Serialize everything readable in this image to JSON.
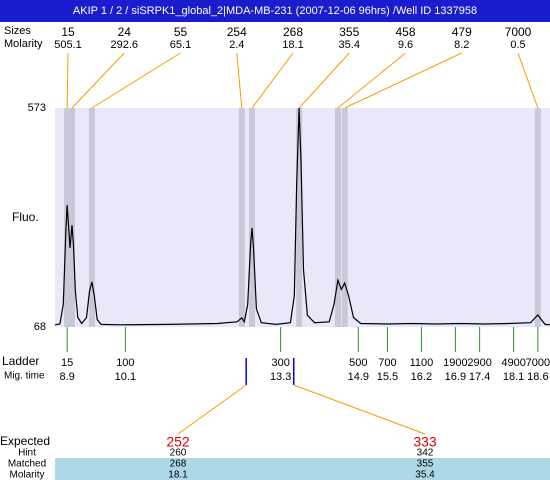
{
  "header": {
    "title": "AKIP 1 / 2 / siSRPK1_global_2|MDA-MB-231 (2007-12-06 96hrs) /Well ID 1337958"
  },
  "chart_data": {
    "type": "line",
    "ylabel": "Fluo.",
    "color": "#000000",
    "ylim": [
      68,
      573
    ],
    "yticks": [
      573,
      68
    ],
    "xlim": [
      8.65,
      18.85
    ],
    "x": [
      8.65,
      8.75,
      8.82,
      8.87,
      8.9,
      8.93,
      8.96,
      9.0,
      9.03,
      9.07,
      9.12,
      9.2,
      9.3,
      9.36,
      9.41,
      9.46,
      9.52,
      9.6,
      10.0,
      11.0,
      12.0,
      12.4,
      12.5,
      12.55,
      12.62,
      12.68,
      12.71,
      12.74,
      12.8,
      12.9,
      13.2,
      13.5,
      13.58,
      13.63,
      13.68,
      13.72,
      13.77,
      13.85,
      14.0,
      14.3,
      14.4,
      14.48,
      14.55,
      14.62,
      14.7,
      14.8,
      14.95,
      15.5,
      16.0,
      16.5,
      17.0,
      17.5,
      18.0,
      18.45,
      18.55,
      18.6,
      18.67,
      18.75,
      18.85
    ],
    "values": [
      73,
      75,
      120,
      280,
      349,
      300,
      250,
      303,
      260,
      150,
      90,
      76,
      90,
      150,
      172,
      140,
      85,
      74,
      73,
      74,
      76,
      80,
      89,
      80,
      120,
      260,
      296,
      250,
      110,
      78,
      74,
      78,
      140,
      400,
      573,
      450,
      200,
      95,
      78,
      80,
      120,
      176,
      155,
      169,
      140,
      90,
      76,
      75,
      76,
      75,
      76,
      75,
      76,
      78,
      90,
      96,
      85,
      74,
      73
    ],
    "peaks": {
      "size_label": "Sizes",
      "molarity_label": "Molarity",
      "size": [
        15,
        24,
        55,
        254,
        268,
        355,
        458,
        479,
        7000
      ],
      "molarity": [
        505.1,
        292.6,
        65.1,
        2.4,
        18.1,
        35.4,
        9.6,
        8.2,
        0.5
      ],
      "time": [
        8.9,
        9.0,
        9.41,
        12.5,
        12.71,
        13.68,
        14.48,
        14.62,
        18.6
      ]
    },
    "ladder": {
      "label": "Ladder",
      "time_label": "Mig. time",
      "size": [
        15,
        100,
        300,
        500,
        700,
        1100,
        1900,
        2900,
        4900,
        7000
      ],
      "time": [
        8.9,
        10.1,
        13.3,
        14.9,
        15.5,
        16.2,
        16.9,
        17.4,
        18.1,
        18.6
      ]
    },
    "expected": {
      "label": "Expected",
      "hint_label": "Hint",
      "matched_label": "Matched",
      "molarity_label": "Molarity",
      "items": [
        {
          "expected": 252,
          "hint": 260,
          "matched": 268,
          "molarity": 18.1,
          "time": 12.59
        },
        {
          "expected": 333,
          "hint": 342,
          "matched": 355,
          "molarity": 35.4,
          "time": 13.57
        }
      ]
    }
  }
}
